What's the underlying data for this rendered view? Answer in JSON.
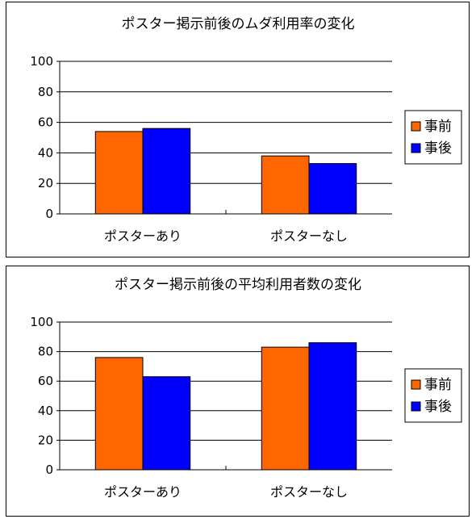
{
  "chart_data": [
    {
      "type": "bar",
      "title": "ポスター掲示前後のムダ利用率の変化",
      "categories": [
        "ポスターあり",
        "ポスターなし"
      ],
      "series": [
        {
          "name": "事前",
          "color": "#FF6600",
          "values": [
            54,
            38
          ]
        },
        {
          "name": "事後",
          "color": "#0000FF",
          "values": [
            56,
            33
          ]
        }
      ],
      "ylim": [
        0,
        100
      ],
      "yticks": [
        0,
        20,
        40,
        60,
        80,
        100
      ],
      "grid": true,
      "legend": "right"
    },
    {
      "type": "bar",
      "title": "ポスター掲示前後の平均利用者数の変化",
      "categories": [
        "ポスターあり",
        "ポスターなし"
      ],
      "series": [
        {
          "name": "事前",
          "color": "#FF6600",
          "values": [
            76,
            83
          ]
        },
        {
          "name": "事後",
          "color": "#0000FF",
          "values": [
            63,
            86
          ]
        }
      ],
      "ylim": [
        0,
        100
      ],
      "yticks": [
        0,
        20,
        40,
        60,
        80,
        100
      ],
      "grid": true,
      "legend": "right"
    }
  ]
}
